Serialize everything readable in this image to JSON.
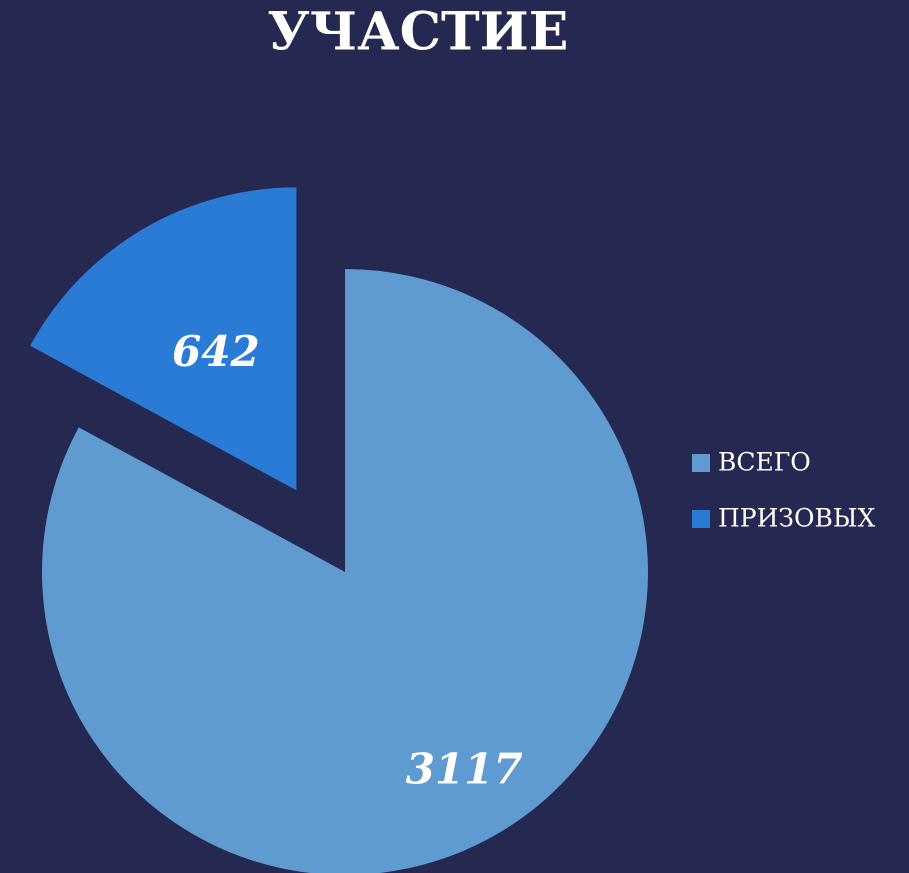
{
  "chart_data": {
    "type": "pie",
    "title": "УЧАСТИЕ",
    "categories": [
      "ВСЕГО",
      "ПРИЗОВЫХ"
    ],
    "values": [
      3117,
      642
    ],
    "colors": [
      "#5f9bd0",
      "#2a7bd6"
    ],
    "legend": "right"
  }
}
